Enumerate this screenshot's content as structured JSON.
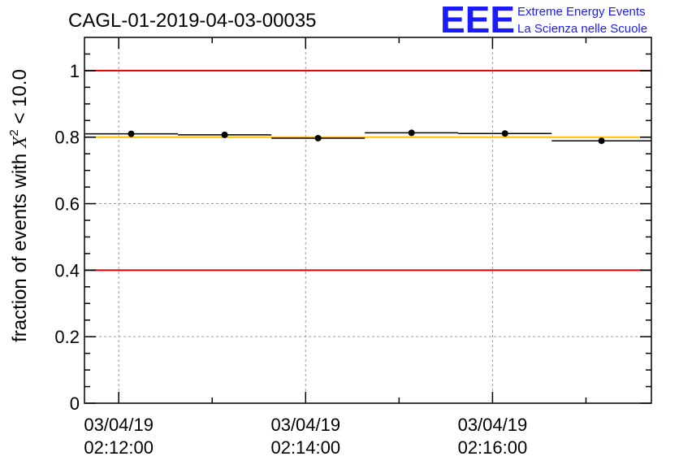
{
  "chart_data": {
    "type": "scatter",
    "title": "CAGL-01-2019-04-03-00035",
    "ylabel": "fraction of events with X² < 10.0",
    "ylabel_parts": {
      "prefix": "fraction of events with ",
      "symbol": "X",
      "superscript": "2",
      "suffix": " < 10.0"
    },
    "xlabel": "",
    "ylim": [
      0,
      1.1
    ],
    "x_range": [
      "02:11:38",
      "02:17:42"
    ],
    "x_ticks": [
      {
        "time": "02:12:00",
        "line1": "03/04/19",
        "line2": "02:12:00"
      },
      {
        "time": "02:14:00",
        "line1": "03/04/19",
        "line2": "02:14:00"
      },
      {
        "time": "02:16:00",
        "line1": "03/04/19",
        "line2": "02:16:00"
      }
    ],
    "x_minor_ticks": [
      "02:13:00",
      "02:15:00",
      "02:17:00"
    ],
    "y_ticks": [
      "0",
      "0.2",
      "0.4",
      "0.6",
      "0.8",
      "1"
    ],
    "y_tick_values": [
      0,
      0.2,
      0.4,
      0.6,
      0.8,
      1
    ],
    "grid": true,
    "points": [
      {
        "x_start": "02:11:38",
        "x_end": "02:12:38",
        "y": 0.81
      },
      {
        "x_start": "02:12:38",
        "x_end": "02:13:38",
        "y": 0.807
      },
      {
        "x_start": "02:13:38",
        "x_end": "02:14:38",
        "y": 0.797
      },
      {
        "x_start": "02:14:38",
        "x_end": "02:15:38",
        "y": 0.813
      },
      {
        "x_start": "02:15:38",
        "x_end": "02:16:38",
        "y": 0.811
      },
      {
        "x_start": "02:16:38",
        "x_end": "02:17:42",
        "y": 0.789
      }
    ],
    "reference_lines": [
      {
        "y": 1.0,
        "color": "#e00000"
      },
      {
        "y": 0.8,
        "color": "#ffc000"
      },
      {
        "y": 0.4,
        "color": "#e00000"
      }
    ],
    "point_color": "#000000"
  },
  "logo": {
    "mark": "EEE",
    "line1": "Extreme Energy Events",
    "line2": "La Scienza nelle Scuole",
    "color": "#1a1aff"
  }
}
